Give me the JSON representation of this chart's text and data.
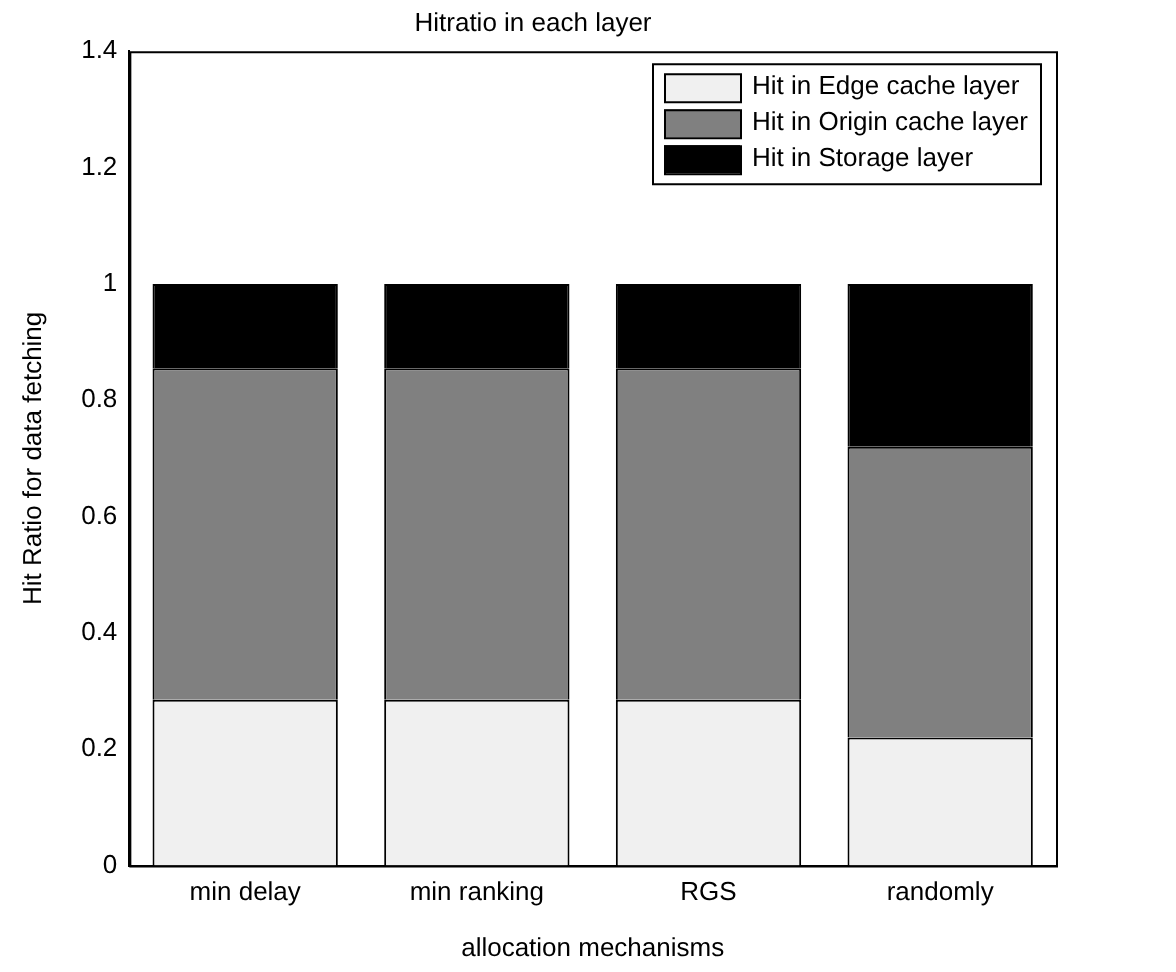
{
  "chart_data": {
    "type": "bar",
    "title": "Hitratio in each layer",
    "xlabel": "allocation mechanisms",
    "ylabel": "Hit Ratio for data fetching",
    "categories": [
      "min delay",
      "min ranking",
      "RGS",
      "randomly"
    ],
    "stacked": true,
    "series": [
      {
        "name": "Hit in Edge cache layer",
        "color": "#f0f0f0",
        "values": [
          0.285,
          0.285,
          0.285,
          0.22
        ]
      },
      {
        "name": "Hit in Origin cache layer",
        "color": "#808080",
        "values": [
          0.57,
          0.57,
          0.57,
          0.5
        ]
      },
      {
        "name": "Hit in Storage layer",
        "color": "#000000",
        "values": [
          0.145,
          0.145,
          0.145,
          0.28
        ]
      }
    ],
    "ylim": [
      0,
      1.4
    ],
    "yticks": [
      0,
      0.2,
      0.4,
      0.6,
      0.8,
      1,
      1.2,
      1.4
    ],
    "grid": false,
    "legend": "top right"
  }
}
